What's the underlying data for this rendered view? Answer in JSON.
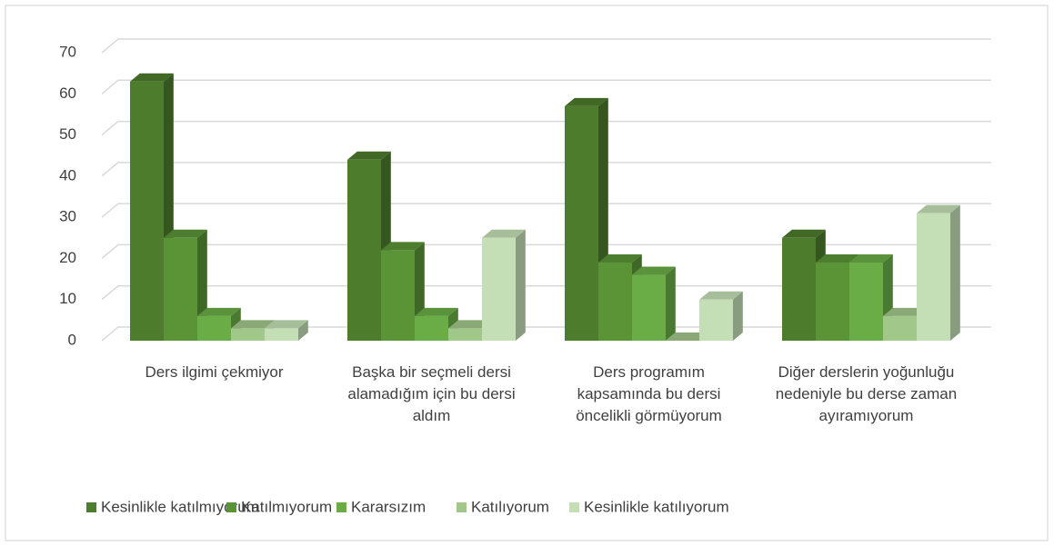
{
  "chart_data": {
    "type": "bar3d",
    "categories": [
      "Ders ilgimi çekmiyor",
      "Başka bir seçmeli dersi alamadığım için bu dersi aldım",
      "Ders programım kapsamında bu dersi öncelikli görmüyorum",
      "Diğer derslerin yoğunluğu nedeniyle bu derse zaman ayıramıyorum"
    ],
    "series": [
      {
        "name": "Kesinlikle katılmıyorum",
        "color": "#4c7c2c",
        "values": [
          63,
          44,
          57,
          25
        ]
      },
      {
        "name": "Katılmıyorum",
        "color": "#5a9437",
        "values": [
          25,
          22,
          19,
          19
        ]
      },
      {
        "name": "Kararsızım",
        "color": "#6aad47",
        "values": [
          6,
          6,
          16,
          19
        ]
      },
      {
        "name": "Katılıyorum",
        "color": "#a2c78b",
        "values": [
          3,
          3,
          0,
          6
        ]
      },
      {
        "name": "Kesinlikle katılıyorum",
        "color": "#c4dfb6",
        "values": [
          3,
          25,
          10,
          31
        ]
      }
    ],
    "ylim": [
      0,
      70
    ],
    "yticks": [
      0,
      10,
      20,
      30,
      40,
      50,
      60,
      70
    ],
    "grid": true,
    "legend": "bottom"
  }
}
